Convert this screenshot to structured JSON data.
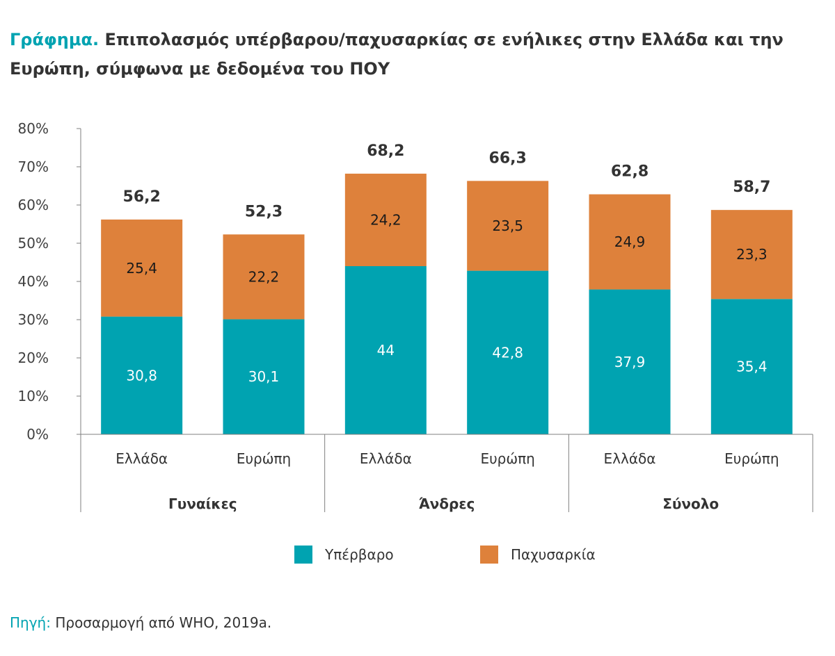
{
  "title_prefix": "Γράφημα.",
  "title_text": "Επιπολασμός υπέρβαρου/παχυσαρκίας σε ενήλικες στην Ελλάδα και την Ευρώπη, σύμφωνα με δεδομένα του ΠΟΥ",
  "source_prefix": "Πηγή:",
  "source_text": "Προσαρμογή από WHO, 2019a.",
  "colors": {
    "overweight": "#00a3b1",
    "obesity": "#de813b",
    "axis": "#7f7f7f",
    "text": "#333333"
  },
  "chart_data": {
    "type": "bar",
    "stacked": true,
    "y_ticks": [
      "0%",
      "10%",
      "20%",
      "30%",
      "40%",
      "50%",
      "60%",
      "70%",
      "80%"
    ],
    "ylim": [
      0,
      80
    ],
    "categories": [
      "Ελλάδα",
      "Ευρώπη",
      "Ελλάδα",
      "Ευρώπη",
      "Ελλάδα",
      "Ευρώπη"
    ],
    "groups": [
      "Γυναίκες",
      "Άνδρες",
      "Σύνολο"
    ],
    "series": [
      {
        "name": "Υπέρβαρο",
        "values": [
          30.8,
          30.1,
          44,
          42.8,
          37.9,
          35.4
        ],
        "labels": [
          "30,8",
          "30,1",
          "44",
          "42,8",
          "37,9",
          "35,4"
        ]
      },
      {
        "name": "Παχυσαρκία",
        "values": [
          25.4,
          22.2,
          24.2,
          23.5,
          24.9,
          23.3
        ],
        "labels": [
          "25,4",
          "22,2",
          "24,2",
          "23,5",
          "24,9",
          "23,3"
        ]
      }
    ],
    "totals": [
      "56,2",
      "52,3",
      "68,2",
      "66,3",
      "62,8",
      "58,7"
    ],
    "legend_position": "bottom",
    "grid": false
  }
}
